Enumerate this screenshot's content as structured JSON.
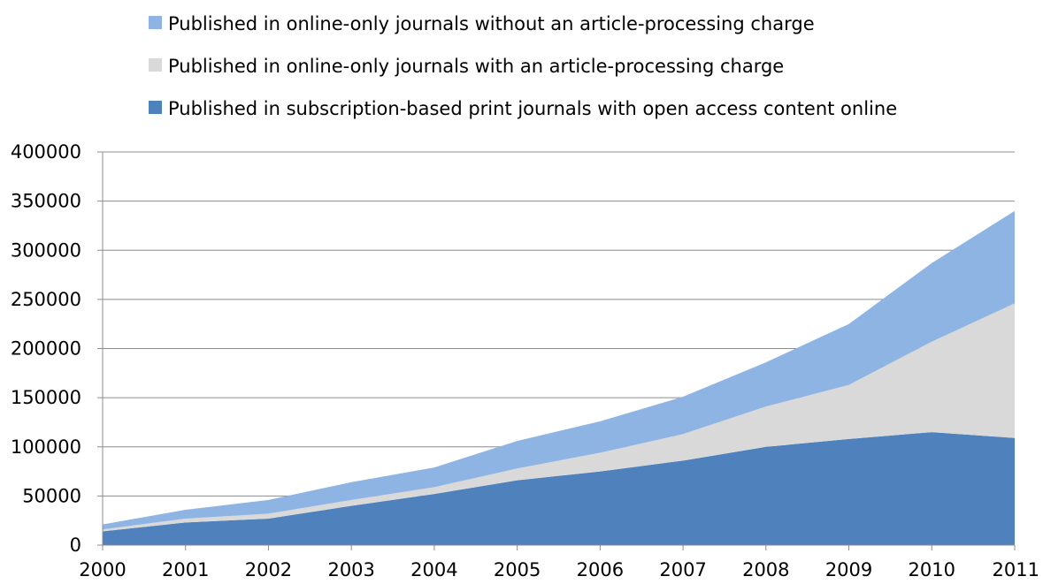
{
  "chart_data": {
    "type": "area",
    "stacked": true,
    "x": [
      "2000",
      "2001",
      "2002",
      "2003",
      "2004",
      "2005",
      "2006",
      "2007",
      "2008",
      "2009",
      "2010",
      "2011"
    ],
    "series": [
      {
        "name": "Published in subscription-based print journals with open access content online",
        "color": "#4f81bd",
        "values": [
          14000,
          23000,
          27000,
          40000,
          52000,
          66000,
          75000,
          86000,
          100000,
          108000,
          115000,
          109000
        ]
      },
      {
        "name": "Published in online-only journals with an article-processing charge",
        "color": "#d9d9d9",
        "values": [
          2000,
          4000,
          5000,
          6000,
          7000,
          12000,
          19000,
          27000,
          41000,
          55000,
          92000,
          137000
        ]
      },
      {
        "name": "Published in online-only journals without an article-processing charge",
        "color": "#8eb4e3",
        "values": [
          5000,
          9000,
          14000,
          18000,
          20000,
          28000,
          32000,
          38000,
          45000,
          62000,
          80000,
          94000
        ]
      }
    ],
    "legend_order": [
      2,
      1,
      0
    ],
    "y_ticks": [
      "0",
      "50000",
      "100000",
      "150000",
      "200000",
      "250000",
      "300000",
      "350000",
      "400000"
    ],
    "ylim": [
      0,
      400000
    ],
    "title": "",
    "xlabel": "",
    "ylabel": "",
    "grid": "horizontal",
    "legend_position": "top"
  }
}
